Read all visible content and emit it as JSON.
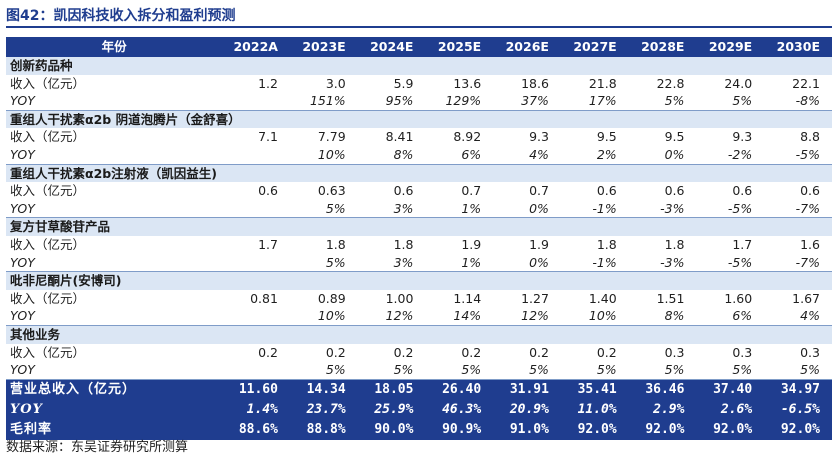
{
  "title": "图42：凯因科技收入拆分和盈利预测",
  "source": "数据来源：东吴证券研究所测算",
  "header": {
    "label": "年份",
    "years": [
      "2022A",
      "2023E",
      "2024E",
      "2025E",
      "2026E",
      "2027E",
      "2028E",
      "2029E",
      "2030E"
    ]
  },
  "sections": [
    {
      "name": "创新药品种",
      "rev_label": "收入（亿元）",
      "revenue": [
        "1.2",
        "3.0",
        "5.9",
        "13.6",
        "18.6",
        "21.8",
        "22.8",
        "24.0",
        "22.1"
      ],
      "yoy_label": "YOY",
      "yoy": [
        "",
        "151%",
        "95%",
        "129%",
        "37%",
        "17%",
        "5%",
        "5%",
        "-8%"
      ]
    },
    {
      "name": "重组人干扰素α2b 阴道泡腾片（金舒喜）",
      "rev_label": "收入（亿元）",
      "revenue": [
        "7.1",
        "7.79",
        "8.41",
        "8.92",
        "9.3",
        "9.5",
        "9.5",
        "9.3",
        "8.8"
      ],
      "yoy_label": "YOY",
      "yoy": [
        "",
        "10%",
        "8%",
        "6%",
        "4%",
        "2%",
        "0%",
        "-2%",
        "-5%"
      ]
    },
    {
      "name": "重组人干扰素α2b注射液（凯因益生)",
      "rev_label": "收入（亿元）",
      "revenue": [
        "0.6",
        "0.63",
        "0.6",
        "0.7",
        "0.7",
        "0.6",
        "0.6",
        "0.6",
        "0.6"
      ],
      "yoy_label": "YOY",
      "yoy": [
        "",
        "5%",
        "3%",
        "1%",
        "0%",
        "-1%",
        "-3%",
        "-5%",
        "-7%"
      ]
    },
    {
      "name": "复方甘草酸苷产品",
      "rev_label": "收入（亿元）",
      "revenue": [
        "1.7",
        "1.8",
        "1.8",
        "1.9",
        "1.9",
        "1.8",
        "1.8",
        "1.7",
        "1.6"
      ],
      "yoy_label": "YOY",
      "yoy": [
        "",
        "5%",
        "3%",
        "1%",
        "0%",
        "-1%",
        "-3%",
        "-5%",
        "-7%"
      ]
    },
    {
      "name": "吡非尼酮片(安博司)",
      "rev_label": "收入（亿元）",
      "revenue": [
        "0.81",
        "0.89",
        "1.00",
        "1.14",
        "1.27",
        "1.40",
        "1.51",
        "1.60",
        "1.67"
      ],
      "yoy_label": "YOY",
      "yoy": [
        "",
        "10%",
        "12%",
        "14%",
        "12%",
        "10%",
        "8%",
        "6%",
        "4%"
      ]
    },
    {
      "name": "其他业务",
      "rev_label": "收入（亿元）",
      "revenue": [
        "0.2",
        "0.2",
        "0.2",
        "0.2",
        "0.2",
        "0.2",
        "0.3",
        "0.3",
        "0.3"
      ],
      "yoy_label": "YOY",
      "yoy": [
        "",
        "5%",
        "5%",
        "5%",
        "5%",
        "5%",
        "5%",
        "5%",
        "5%"
      ]
    }
  ],
  "totals": [
    {
      "label": "营业总收入（亿元）",
      "values": [
        "11.60",
        "14.34",
        "18.05",
        "26.40",
        "31.91",
        "35.41",
        "36.46",
        "37.40",
        "34.97"
      ]
    },
    {
      "label": "YOY",
      "values": [
        "1.4%",
        "23.7%",
        "25.9%",
        "46.3%",
        "20.9%",
        "11.0%",
        "2.9%",
        "2.6%",
        "-6.5%"
      ]
    },
    {
      "label": "毛利率",
      "values": [
        "88.6%",
        "88.8%",
        "90.0%",
        "90.9%",
        "91.0%",
        "92.0%",
        "92.0%",
        "92.0%",
        "92.0%"
      ]
    }
  ]
}
